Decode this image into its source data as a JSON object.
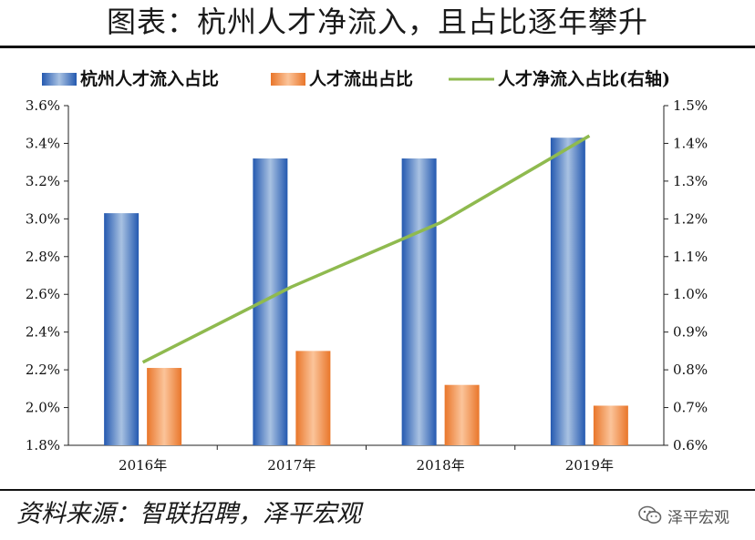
{
  "title": "图表：杭州人才净流入，且占比逐年攀升",
  "source": "资料来源：智联招聘，泽平宏观",
  "watermark": "泽平宏观",
  "watermark_icon": "wechat-icon",
  "chart_data": {
    "type": "bar",
    "categories": [
      "2016年",
      "2017年",
      "2018年",
      "2019年"
    ],
    "series": [
      {
        "name": "杭州人才流入占比",
        "type": "bar",
        "axis": "left",
        "values": [
          3.03,
          3.32,
          3.32,
          3.43
        ],
        "color": "#3d74c4"
      },
      {
        "name": "人才流出占比",
        "type": "bar",
        "axis": "left",
        "values": [
          2.21,
          2.3,
          2.12,
          2.01
        ],
        "color": "#ee8438"
      },
      {
        "name": "人才净流入占比(右轴)",
        "type": "line",
        "axis": "right",
        "values": [
          0.82,
          1.02,
          1.19,
          1.42
        ],
        "color": "#8fba4f"
      }
    ],
    "y_left": {
      "min": 1.8,
      "max": 3.6,
      "step": 0.2,
      "decimals": 1,
      "unit": "%"
    },
    "y_right": {
      "min": 0.6,
      "max": 1.5,
      "step": 0.1,
      "decimals": 1,
      "unit": "%"
    },
    "grid": false,
    "legend": "top",
    "title": "",
    "xlabel": "",
    "ylabel": ""
  }
}
